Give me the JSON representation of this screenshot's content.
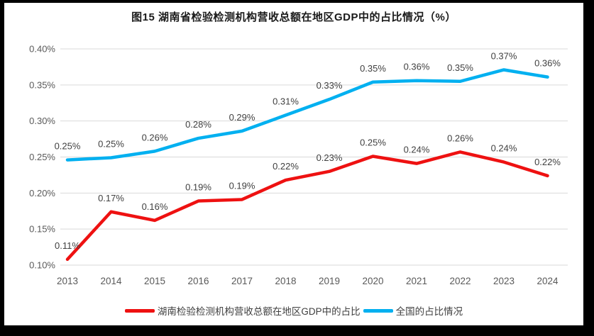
{
  "window": {
    "background_color": "#000000",
    "chart_background_color": "#ffffff"
  },
  "chart_data": {
    "type": "line",
    "title": "图15 湖南省检验检测机构营收总额在地区GDP中的占比情况（%）",
    "categories": [
      "2013",
      "2014",
      "2015",
      "2016",
      "2017",
      "2018",
      "2019",
      "2020",
      "2021",
      "2022",
      "2023",
      "2024"
    ],
    "series": [
      {
        "name": "湖南检验检测机构营收总额在地区GDP中的占比",
        "color": "#ee1111",
        "labels": [
          "0.11%",
          "0.17%",
          "0.16%",
          "0.19%",
          "0.19%",
          "0.22%",
          "0.23%",
          "0.25%",
          "0.24%",
          "0.26%",
          "0.24%",
          "0.22%"
        ],
        "values": [
          0.11,
          0.17,
          0.16,
          0.19,
          0.19,
          0.22,
          0.23,
          0.25,
          0.24,
          0.26,
          0.24,
          0.22
        ],
        "values_precise": [
          0.108,
          0.174,
          0.162,
          0.189,
          0.191,
          0.218,
          0.23,
          0.251,
          0.241,
          0.257,
          0.243,
          0.224
        ]
      },
      {
        "name": "全国的占比情况",
        "color": "#00b0f0",
        "labels": [
          "0.25%",
          "0.25%",
          "0.26%",
          "0.28%",
          "0.29%",
          "0.31%",
          "0.33%",
          "0.35%",
          "0.36%",
          "0.35%",
          "0.37%",
          "0.36%"
        ],
        "values": [
          0.25,
          0.25,
          0.26,
          0.28,
          0.29,
          0.31,
          0.33,
          0.35,
          0.36,
          0.35,
          0.37,
          0.36
        ],
        "values_precise": [
          0.246,
          0.249,
          0.258,
          0.276,
          0.286,
          0.308,
          0.33,
          0.354,
          0.356,
          0.355,
          0.371,
          0.361
        ]
      }
    ],
    "y_axis": {
      "min": 0.1,
      "max": 0.4,
      "step": 0.05,
      "tick_labels": [
        "0.10%",
        "0.15%",
        "0.20%",
        "0.25%",
        "0.30%",
        "0.35%",
        "0.40%"
      ],
      "tick_values": [
        0.1,
        0.15,
        0.2,
        0.25,
        0.3,
        0.35,
        0.4
      ]
    },
    "grid": true,
    "gridline_color": "#d9d9d9",
    "axis_text_color": "#595959",
    "data_label_color": "#404040",
    "legend_position": "bottom"
  }
}
